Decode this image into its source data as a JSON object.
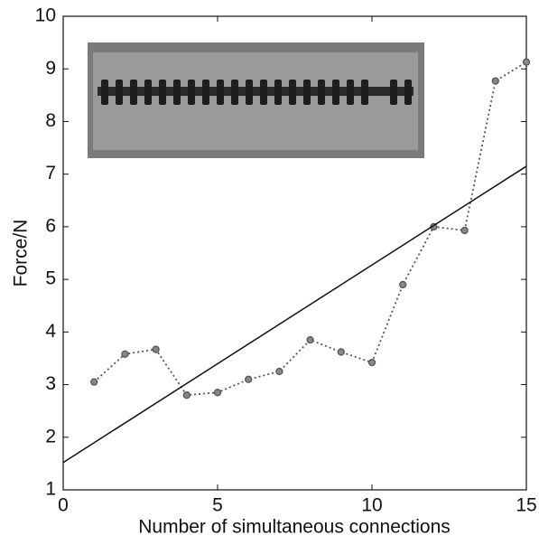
{
  "chart_data": {
    "type": "line",
    "xlabel": "Number of simultaneous connections",
    "ylabel": "Force/N",
    "xlim": [
      0,
      15
    ],
    "xticks": [
      0,
      5,
      10,
      15
    ],
    "ylim": [
      1,
      10
    ],
    "yticks": [
      1,
      2,
      3,
      4,
      5,
      6,
      7,
      8,
      9,
      10
    ],
    "series": [
      {
        "color": "#555555",
        "linestyle": "dotted",
        "markers": true,
        "x": [
          1,
          2,
          3,
          4,
          5,
          6,
          7,
          8,
          9,
          10,
          11,
          12,
          13,
          14,
          15
        ],
        "values": [
          3.05,
          3.58,
          3.67,
          2.8,
          2.85,
          3.1,
          3.25,
          3.85,
          3.62,
          3.42,
          4.9,
          6.0,
          5.93,
          8.77,
          9.13
        ]
      },
      {
        "color": "#111111",
        "linestyle": "solid",
        "markers": false,
        "x": [
          0,
          15
        ],
        "values": [
          1.52,
          7.15
        ]
      }
    ]
  }
}
